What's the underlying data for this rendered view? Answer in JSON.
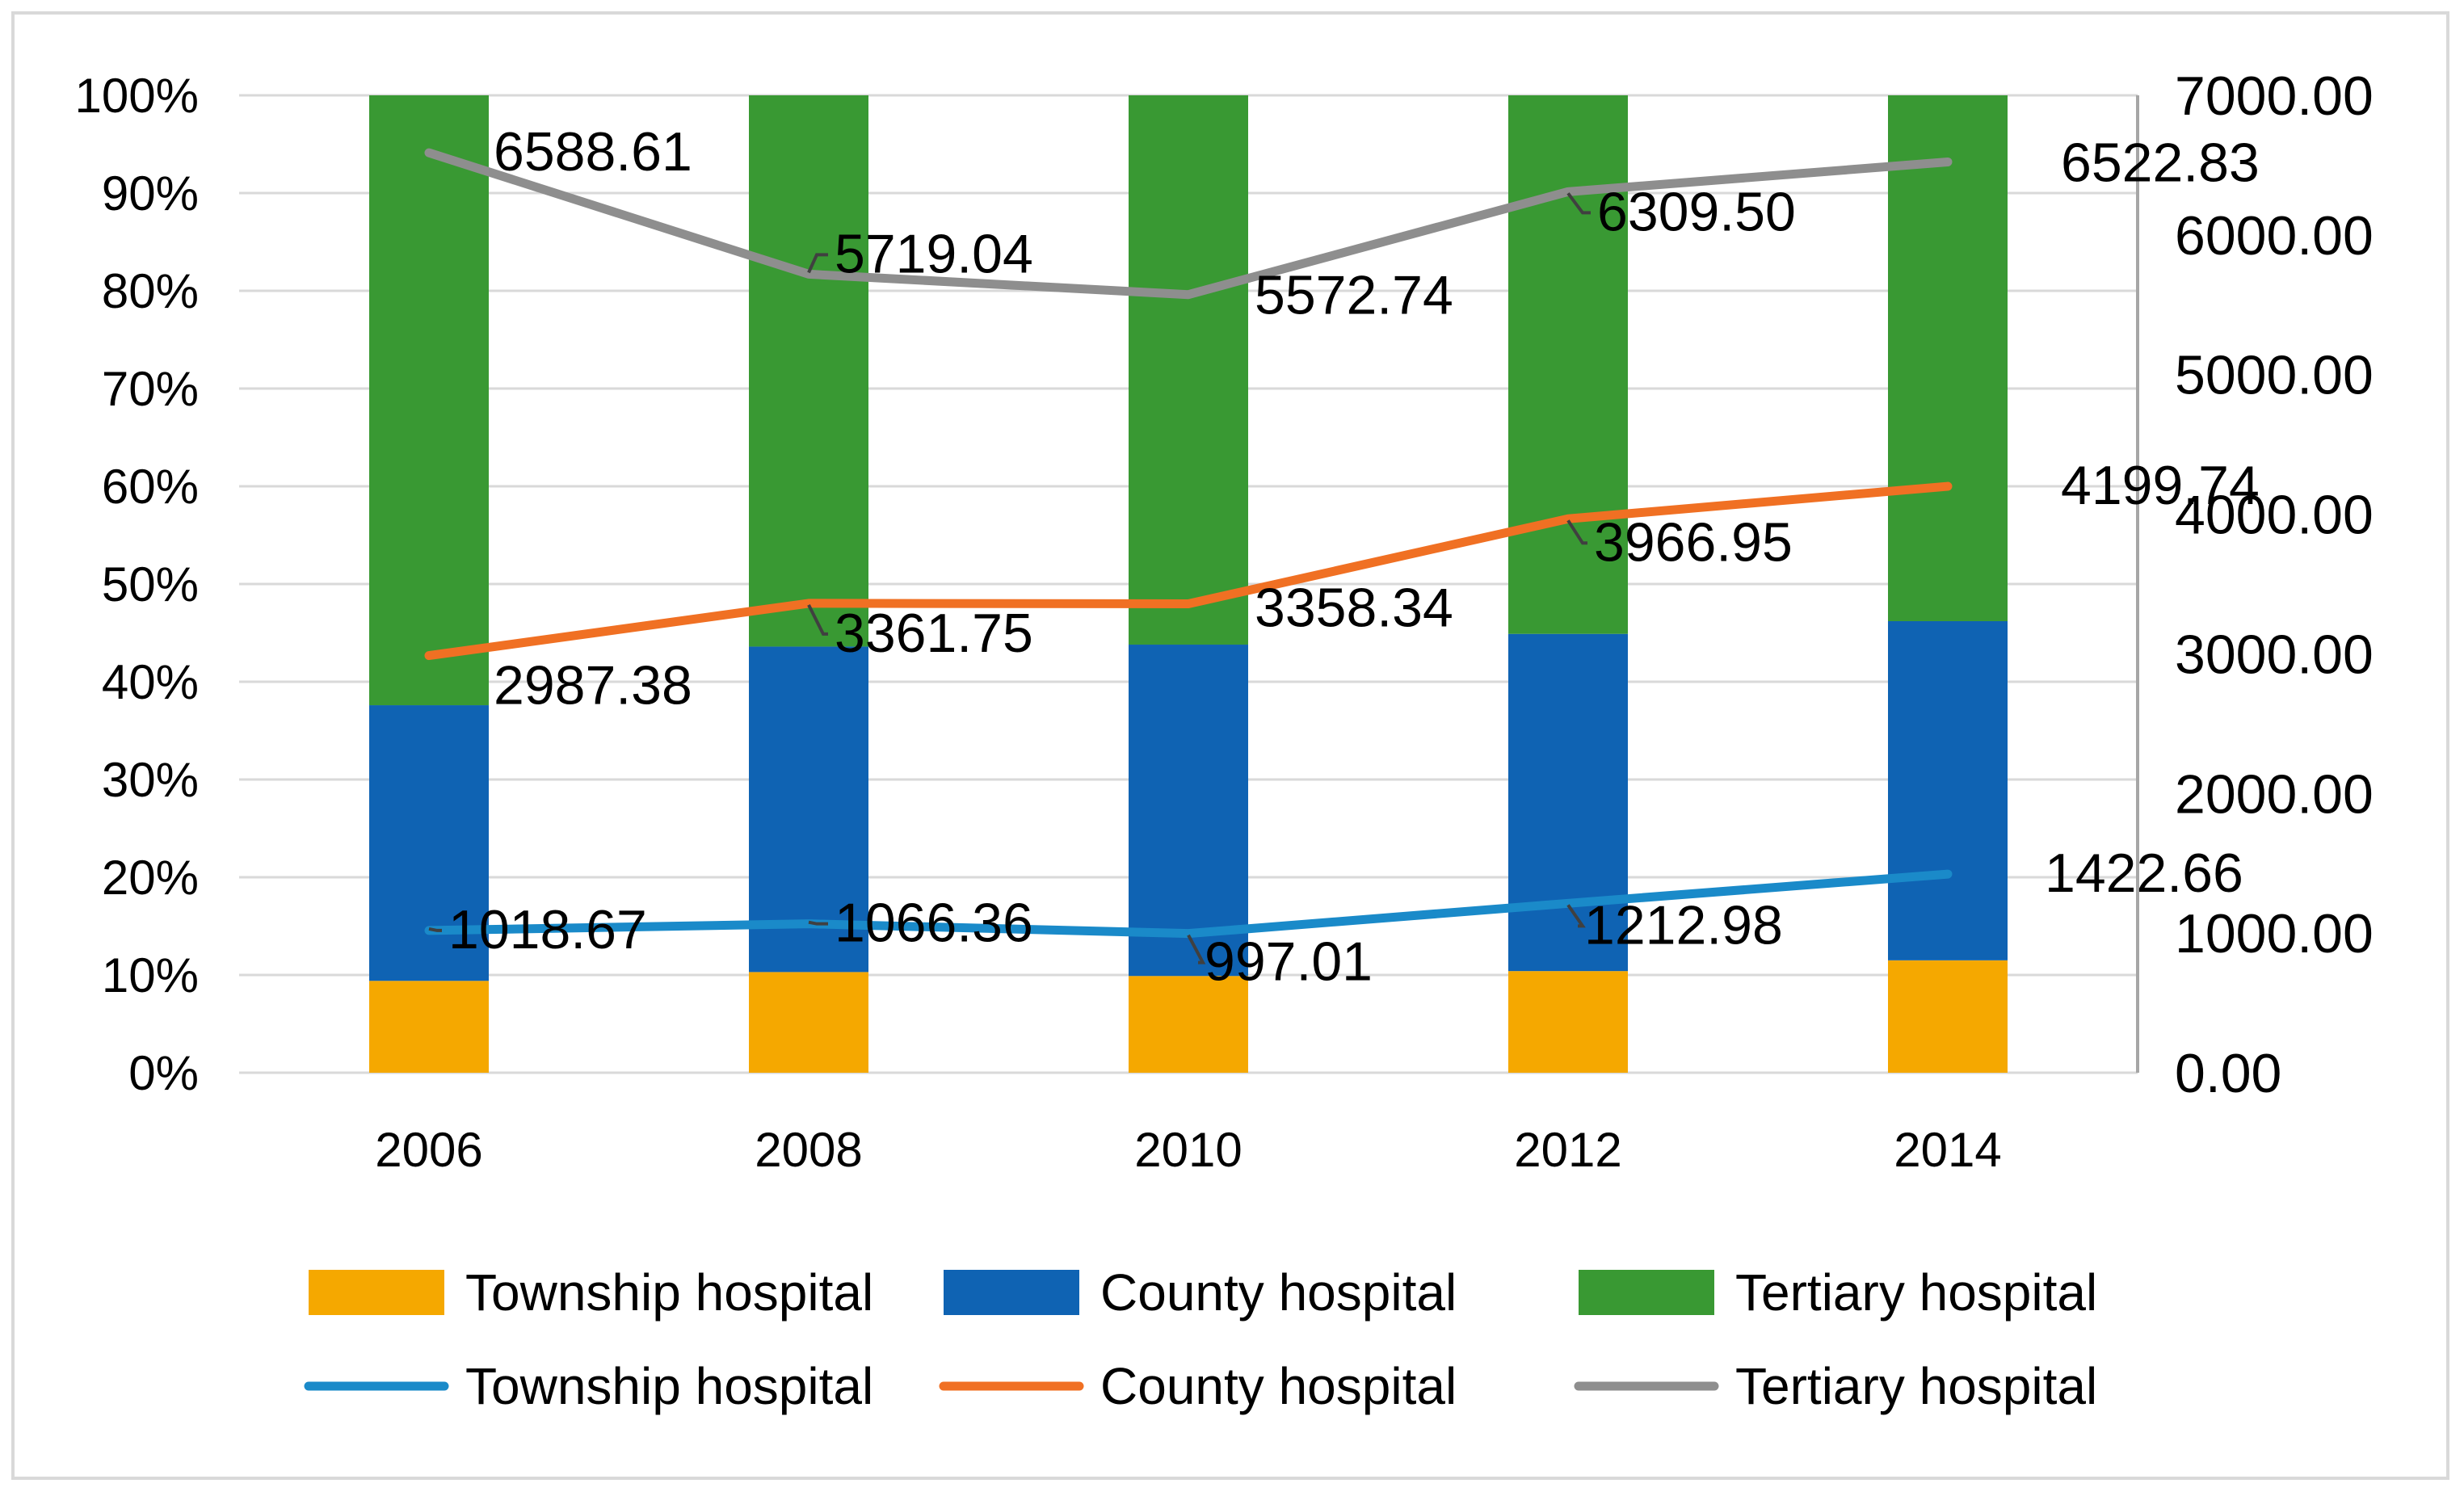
{
  "chart_data": {
    "type": "bar",
    "subtype": "stacked-100-percent-with-line-overlay",
    "title": "",
    "xlabel": "",
    "ylabel": "",
    "categories": [
      "2006",
      "2008",
      "2010",
      "2012",
      "2014"
    ],
    "y_left": {
      "ylim": [
        0,
        100
      ],
      "ticks": [
        "0%",
        "10%",
        "20%",
        "30%",
        "40%",
        "50%",
        "60%",
        "70%",
        "80%",
        "90%",
        "100%"
      ]
    },
    "y_right": {
      "ylim": [
        0,
        7000
      ],
      "ticks": [
        "0.00",
        "1000.00",
        "2000.00",
        "3000.00",
        "4000.00",
        "5000.00",
        "6000.00",
        "7000.00"
      ]
    },
    "bar_series": [
      {
        "name": "Township hospital",
        "color": "#f5a800",
        "values": [
          9.4,
          10.3,
          9.9,
          10.4,
          11.5
        ]
      },
      {
        "name": "County hospital",
        "color": "#0f63b3",
        "values": [
          28.2,
          33.3,
          33.9,
          34.5,
          34.7
        ]
      },
      {
        "name": "Tertiary hospital",
        "color": "#399933",
        "values": [
          62.4,
          56.4,
          56.2,
          55.1,
          53.8
        ]
      }
    ],
    "line_series": [
      {
        "name": "Township hospital",
        "color": "#1a8ac9",
        "values": [
          1018.67,
          1066.36,
          997.01,
          1212.98,
          1422.66
        ],
        "labels": [
          "1018.67",
          "1066.36",
          "997.01",
          "1212.98",
          "1422.66"
        ]
      },
      {
        "name": "County hospital",
        "color": "#f07023",
        "values": [
          2987.38,
          3361.75,
          3358.34,
          3966.95,
          4199.74
        ],
        "labels": [
          "2987.38",
          "3361.75",
          "3358.34",
          "3966.95",
          "4199.74"
        ]
      },
      {
        "name": "Tertiary hospital",
        "color": "#8e8e8e",
        "values": [
          6588.61,
          5719.04,
          5572.74,
          6309.5,
          6522.83
        ],
        "labels": [
          "6588.61",
          "5719.04",
          "5572.74",
          "6309.50",
          "6522.83"
        ]
      }
    ],
    "grid": true,
    "legend": "bottom"
  }
}
